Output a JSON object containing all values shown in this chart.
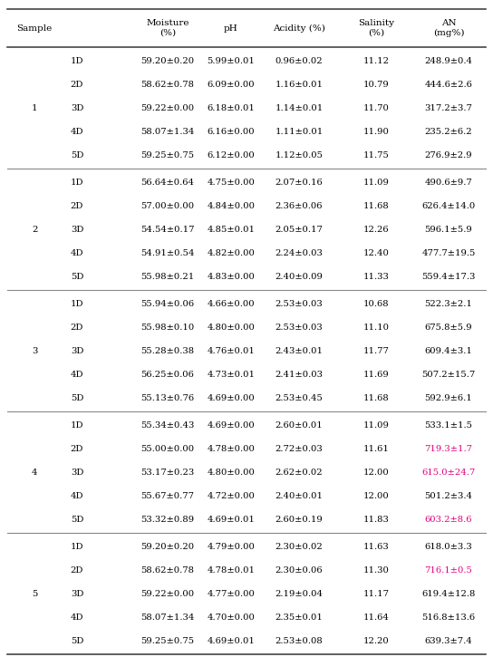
{
  "groups": [
    {
      "group": "1",
      "rows": [
        {
          "sub": "1D",
          "moisture": "59.20±0.20",
          "ph": "5.99±0.01",
          "acidity": "0.96±0.02",
          "salinity": "11.12",
          "an": "248.9±0.4",
          "an_color": "black"
        },
        {
          "sub": "2D",
          "moisture": "58.62±0.78",
          "ph": "6.09±0.00",
          "acidity": "1.16±0.01",
          "salinity": "10.79",
          "an": "444.6±2.6",
          "an_color": "black"
        },
        {
          "sub": "3D",
          "moisture": "59.22±0.00",
          "ph": "6.18±0.01",
          "acidity": "1.14±0.01",
          "salinity": "11.70",
          "an": "317.2±3.7",
          "an_color": "black"
        },
        {
          "sub": "4D",
          "moisture": "58.07±1.34",
          "ph": "6.16±0.00",
          "acidity": "1.11±0.01",
          "salinity": "11.90",
          "an": "235.2±6.2",
          "an_color": "black"
        },
        {
          "sub": "5D",
          "moisture": "59.25±0.75",
          "ph": "6.12±0.00",
          "acidity": "1.12±0.05",
          "salinity": "11.75",
          "an": "276.9±2.9",
          "an_color": "black"
        }
      ]
    },
    {
      "group": "2",
      "rows": [
        {
          "sub": "1D",
          "moisture": "56.64±0.64",
          "ph": "4.75±0.00",
          "acidity": "2.07±0.16",
          "salinity": "11.09",
          "an": "490.6±9.7",
          "an_color": "black"
        },
        {
          "sub": "2D",
          "moisture": "57.00±0.00",
          "ph": "4.84±0.00",
          "acidity": "2.36±0.06",
          "salinity": "11.68",
          "an": "626.4±14.0",
          "an_color": "black"
        },
        {
          "sub": "3D",
          "moisture": "54.54±0.17",
          "ph": "4.85±0.01",
          "acidity": "2.05±0.17",
          "salinity": "12.26",
          "an": "596.1±5.9",
          "an_color": "black"
        },
        {
          "sub": "4D",
          "moisture": "54.91±0.54",
          "ph": "4.82±0.00",
          "acidity": "2.24±0.03",
          "salinity": "12.40",
          "an": "477.7±19.5",
          "an_color": "black"
        },
        {
          "sub": "5D",
          "moisture": "55.98±0.21",
          "ph": "4.83±0.00",
          "acidity": "2.40±0.09",
          "salinity": "11.33",
          "an": "559.4±17.3",
          "an_color": "black"
        }
      ]
    },
    {
      "group": "3",
      "rows": [
        {
          "sub": "1D",
          "moisture": "55.94±0.06",
          "ph": "4.66±0.00",
          "acidity": "2.53±0.03",
          "salinity": "10.68",
          "an": "522.3±2.1",
          "an_color": "black"
        },
        {
          "sub": "2D",
          "moisture": "55.98±0.10",
          "ph": "4.80±0.00",
          "acidity": "2.53±0.03",
          "salinity": "11.10",
          "an": "675.8±5.9",
          "an_color": "black"
        },
        {
          "sub": "3D",
          "moisture": "55.28±0.38",
          "ph": "4.76±0.01",
          "acidity": "2.43±0.01",
          "salinity": "11.77",
          "an": "609.4±3.1",
          "an_color": "black"
        },
        {
          "sub": "4D",
          "moisture": "56.25±0.06",
          "ph": "4.73±0.01",
          "acidity": "2.41±0.03",
          "salinity": "11.69",
          "an": "507.2±15.7",
          "an_color": "black"
        },
        {
          "sub": "5D",
          "moisture": "55.13±0.76",
          "ph": "4.69±0.00",
          "acidity": "2.53±0.45",
          "salinity": "11.68",
          "an": "592.9±6.1",
          "an_color": "black"
        }
      ]
    },
    {
      "group": "4",
      "rows": [
        {
          "sub": "1D",
          "moisture": "55.34±0.43",
          "ph": "4.69±0.00",
          "acidity": "2.60±0.01",
          "salinity": "11.09",
          "an": "533.1±1.5",
          "an_color": "black"
        },
        {
          "sub": "2D",
          "moisture": "55.00±0.00",
          "ph": "4.78±0.00",
          "acidity": "2.72±0.03",
          "salinity": "11.61",
          "an": "719.3±1.7",
          "an_color": "magenta"
        },
        {
          "sub": "3D",
          "moisture": "53.17±0.23",
          "ph": "4.80±0.00",
          "acidity": "2.62±0.02",
          "salinity": "12.00",
          "an": "615.0±24.7",
          "an_color": "magenta"
        },
        {
          "sub": "4D",
          "moisture": "55.67±0.77",
          "ph": "4.72±0.00",
          "acidity": "2.40±0.01",
          "salinity": "12.00",
          "an": "501.2±3.4",
          "an_color": "black"
        },
        {
          "sub": "5D",
          "moisture": "53.32±0.89",
          "ph": "4.69±0.01",
          "acidity": "2.60±0.19",
          "salinity": "11.83",
          "an": "603.2±8.6",
          "an_color": "magenta"
        }
      ]
    },
    {
      "group": "5",
      "rows": [
        {
          "sub": "1D",
          "moisture": "59.20±0.20",
          "ph": "4.79±0.00",
          "acidity": "2.30±0.02",
          "salinity": "11.63",
          "an": "618.0±3.3",
          "an_color": "black"
        },
        {
          "sub": "2D",
          "moisture": "58.62±0.78",
          "ph": "4.78±0.01",
          "acidity": "2.30±0.06",
          "salinity": "11.30",
          "an": "716.1±0.5",
          "an_color": "magenta"
        },
        {
          "sub": "3D",
          "moisture": "59.22±0.00",
          "ph": "4.77±0.00",
          "acidity": "2.19±0.04",
          "salinity": "11.17",
          "an": "619.4±12.8",
          "an_color": "black"
        },
        {
          "sub": "4D",
          "moisture": "58.07±1.34",
          "ph": "4.70±0.00",
          "acidity": "2.35±0.01",
          "salinity": "11.64",
          "an": "516.8±13.6",
          "an_color": "black"
        },
        {
          "sub": "5D",
          "moisture": "59.25±0.75",
          "ph": "4.69±0.01",
          "acidity": "2.53±0.08",
          "salinity": "12.20",
          "an": "639.3±7.4",
          "an_color": "black"
        }
      ]
    }
  ],
  "magenta_color": "#e0007f",
  "black_color": "#000000",
  "bg_color": "#FFFFFF",
  "font_size": 7.2,
  "header_font_size": 7.5
}
